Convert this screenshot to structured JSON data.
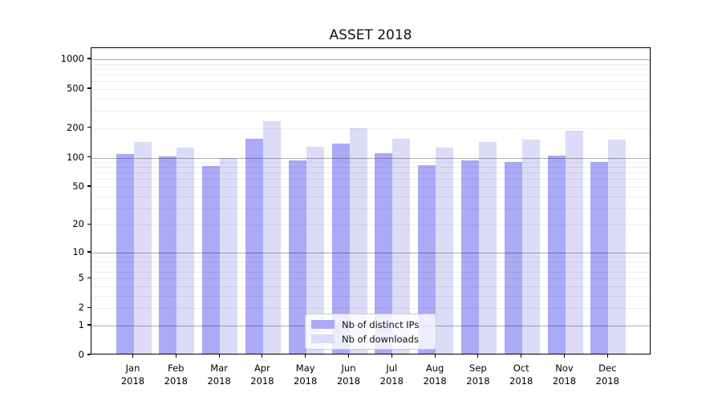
{
  "title": "ASSET 2018",
  "chart_data": {
    "type": "bar",
    "title": "ASSET 2018",
    "xlabel": "",
    "ylabel": "",
    "y_scale": "symlog",
    "ylim": [
      0,
      1300
    ],
    "grid": true,
    "legend_position": "lower center",
    "categories": [
      "Jan",
      "Feb",
      "Mar",
      "Apr",
      "May",
      "Jun",
      "Jul",
      "Aug",
      "Sep",
      "Oct",
      "Nov",
      "Dec"
    ],
    "category_year": "2018",
    "y_ticks": [
      0,
      1,
      2,
      5,
      10,
      20,
      50,
      100,
      200,
      500,
      1000
    ],
    "y_major_gridlines": [
      1,
      10,
      100,
      1000
    ],
    "series": [
      {
        "name": "Nb of distinct IPs",
        "color": "#aaaaf7",
        "values": [
          104,
          100,
          79,
          151,
          91,
          133,
          107,
          81,
          91,
          87,
          101,
          87
        ]
      },
      {
        "name": "Nb of downloads",
        "color": "#dcdcf8",
        "values": [
          140,
          121,
          95,
          228,
          124,
          193,
          151,
          123,
          138,
          146,
          182,
          146
        ]
      }
    ]
  },
  "colors": {
    "series_dark": "#aaaaf7",
    "series_light": "#dcdcf8",
    "spine": "#000000",
    "major_grid": "#adadad",
    "minor_grid": "#ededed",
    "legend_border": "#cccccc"
  }
}
